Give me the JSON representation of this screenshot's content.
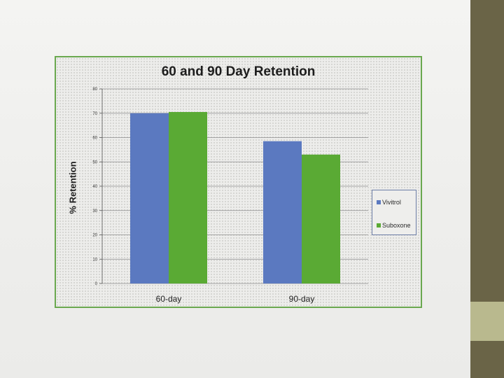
{
  "chart_data": {
    "type": "bar",
    "title": "60 and 90 Day Retention",
    "xlabel": "",
    "ylabel": "% Retention",
    "categories": [
      "60-day",
      "90-day"
    ],
    "series": [
      {
        "name": "Vivitrol",
        "values": [
          70,
          58.5
        ],
        "color": "#5b79c0"
      },
      {
        "name": "Suboxone",
        "values": [
          70.5,
          53
        ],
        "color": "#5aaa34"
      }
    ],
    "ylim": [
      0,
      80
    ],
    "yticks": [
      "0",
      "10",
      "20",
      "30",
      "40",
      "50",
      "60",
      "70",
      "80"
    ],
    "grid": true,
    "legend_position": "right",
    "frame_color": "#6aa84f",
    "legend_border_color": "#6c7da6"
  }
}
